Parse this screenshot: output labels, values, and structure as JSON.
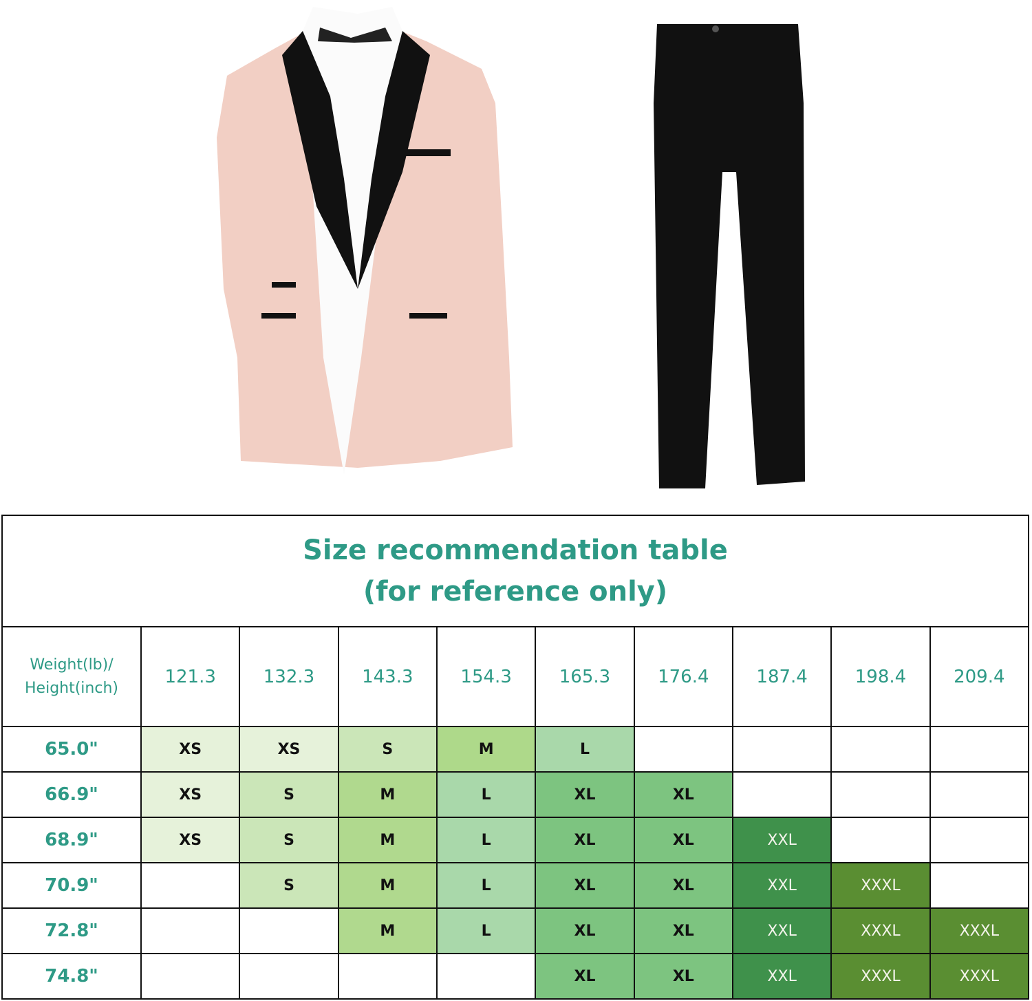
{
  "title_line1": "Size recommendation table",
  "title_line2": "(for reference only)",
  "header_label_line1": "Weight(lb)/",
  "header_label_line2": "Height(inch)",
  "weights": [
    "121.3",
    "132.3",
    "143.3",
    "154.3",
    "165.3",
    "176.4",
    "187.4",
    "198.4",
    "209.4"
  ],
  "rows": [
    {
      "height": "65.0\"",
      "sizes": [
        "XS",
        "XS",
        "S",
        "M",
        "L",
        "",
        "",
        "",
        ""
      ]
    },
    {
      "height": "66.9\"",
      "sizes": [
        "XS",
        "S",
        "M",
        "L",
        "XL",
        "XL",
        "",
        "",
        ""
      ]
    },
    {
      "height": "68.9\"",
      "sizes": [
        "XS",
        "S",
        "M",
        "L",
        "XL",
        "XL",
        "XXL",
        "",
        ""
      ]
    },
    {
      "height": "70.9\"",
      "sizes": [
        "",
        "S",
        "M",
        "L",
        "XL",
        "XL",
        "XXL",
        "XXXL",
        ""
      ]
    },
    {
      "height": "72.8\"",
      "sizes": [
        "",
        "",
        "M",
        "L",
        "XL",
        "XL",
        "XXL",
        "XXXL",
        "XXXL"
      ]
    },
    {
      "height": "74.8\"",
      "sizes": [
        "",
        "",
        "",
        "",
        "XL",
        "XL",
        "XXL",
        "XXXL",
        "XXXL"
      ]
    }
  ],
  "size_colors": {
    "XS": "#e6f2da",
    "S": "#cbe6b8",
    "M": "#b0d98e",
    "L": "#a9d8aa",
    "XL": "#7dc480",
    "XXL": "#3f914b",
    "XXXL": "#5a8e32"
  },
  "first_row_m_color": "#aed98a",
  "title_color": "#2e9a86"
}
